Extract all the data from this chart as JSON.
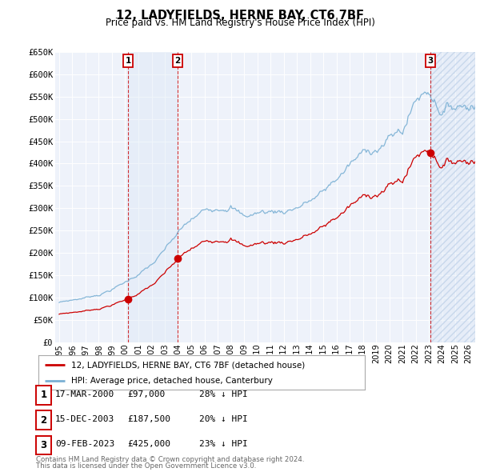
{
  "title": "12, LADYFIELDS, HERNE BAY, CT6 7BF",
  "subtitle": "Price paid vs. HM Land Registry's House Price Index (HPI)",
  "ylim": [
    0,
    650000
  ],
  "yticks": [
    0,
    50000,
    100000,
    150000,
    200000,
    250000,
    300000,
    350000,
    400000,
    450000,
    500000,
    550000,
    600000,
    650000
  ],
  "ytick_labels": [
    "£0",
    "£50K",
    "£100K",
    "£150K",
    "£200K",
    "£250K",
    "£300K",
    "£350K",
    "£400K",
    "£450K",
    "£500K",
    "£550K",
    "£600K",
    "£650K"
  ],
  "sales": [
    {
      "label": 1,
      "date_num": 2000.21,
      "price": 97000,
      "date_str": "17-MAR-2000",
      "price_str": "£97,000",
      "hpi_pct": "28% ↓ HPI"
    },
    {
      "label": 2,
      "date_num": 2003.96,
      "price": 187500,
      "date_str": "15-DEC-2003",
      "price_str": "£187,500",
      "hpi_pct": "20% ↓ HPI"
    },
    {
      "label": 3,
      "date_num": 2023.11,
      "price": 425000,
      "date_str": "09-FEB-2023",
      "price_str": "£425,000",
      "hpi_pct": "23% ↓ HPI"
    }
  ],
  "legend_property": "12, LADYFIELDS, HERNE BAY, CT6 7BF (detached house)",
  "legend_hpi": "HPI: Average price, detached house, Canterbury",
  "footnote1": "Contains HM Land Registry data © Crown copyright and database right 2024.",
  "footnote2": "This data is licensed under the Open Government Licence v3.0.",
  "red_color": "#cc0000",
  "blue_color": "#7ab0d4",
  "bg_color": "#eef2fa",
  "grid_color": "#ffffff",
  "shade_color": "#d8e6f5",
  "xlim_left": 1994.7,
  "xlim_right": 2026.5
}
